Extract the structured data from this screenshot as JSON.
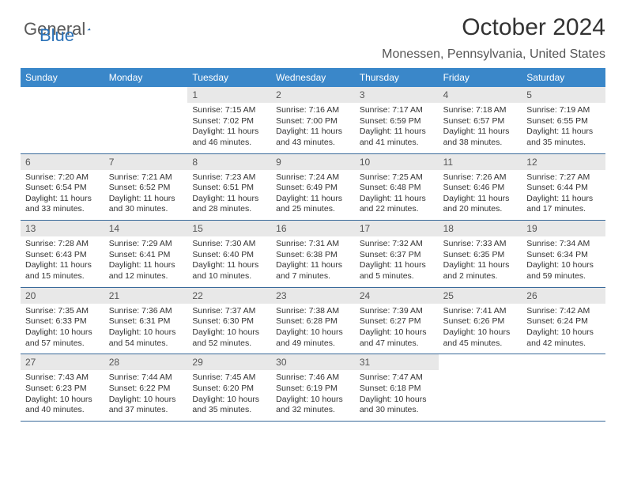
{
  "logo": {
    "word1": "General",
    "word2": "Blue"
  },
  "title": "October 2024",
  "location": "Monessen, Pennsylvania, United States",
  "colors": {
    "header_bg": "#3a87c9",
    "header_text": "#ffffff",
    "daynum_bg": "#e8e8e8",
    "week_border": "#3a6a9a",
    "text": "#333333"
  },
  "day_names": [
    "Sunday",
    "Monday",
    "Tuesday",
    "Wednesday",
    "Thursday",
    "Friday",
    "Saturday"
  ],
  "weeks": [
    [
      {
        "n": "",
        "sr": "",
        "ss": "",
        "dl": ""
      },
      {
        "n": "",
        "sr": "",
        "ss": "",
        "dl": ""
      },
      {
        "n": "1",
        "sr": "Sunrise: 7:15 AM",
        "ss": "Sunset: 7:02 PM",
        "dl": "Daylight: 11 hours and 46 minutes."
      },
      {
        "n": "2",
        "sr": "Sunrise: 7:16 AM",
        "ss": "Sunset: 7:00 PM",
        "dl": "Daylight: 11 hours and 43 minutes."
      },
      {
        "n": "3",
        "sr": "Sunrise: 7:17 AM",
        "ss": "Sunset: 6:59 PM",
        "dl": "Daylight: 11 hours and 41 minutes."
      },
      {
        "n": "4",
        "sr": "Sunrise: 7:18 AM",
        "ss": "Sunset: 6:57 PM",
        "dl": "Daylight: 11 hours and 38 minutes."
      },
      {
        "n": "5",
        "sr": "Sunrise: 7:19 AM",
        "ss": "Sunset: 6:55 PM",
        "dl": "Daylight: 11 hours and 35 minutes."
      }
    ],
    [
      {
        "n": "6",
        "sr": "Sunrise: 7:20 AM",
        "ss": "Sunset: 6:54 PM",
        "dl": "Daylight: 11 hours and 33 minutes."
      },
      {
        "n": "7",
        "sr": "Sunrise: 7:21 AM",
        "ss": "Sunset: 6:52 PM",
        "dl": "Daylight: 11 hours and 30 minutes."
      },
      {
        "n": "8",
        "sr": "Sunrise: 7:23 AM",
        "ss": "Sunset: 6:51 PM",
        "dl": "Daylight: 11 hours and 28 minutes."
      },
      {
        "n": "9",
        "sr": "Sunrise: 7:24 AM",
        "ss": "Sunset: 6:49 PM",
        "dl": "Daylight: 11 hours and 25 minutes."
      },
      {
        "n": "10",
        "sr": "Sunrise: 7:25 AM",
        "ss": "Sunset: 6:48 PM",
        "dl": "Daylight: 11 hours and 22 minutes."
      },
      {
        "n": "11",
        "sr": "Sunrise: 7:26 AM",
        "ss": "Sunset: 6:46 PM",
        "dl": "Daylight: 11 hours and 20 minutes."
      },
      {
        "n": "12",
        "sr": "Sunrise: 7:27 AM",
        "ss": "Sunset: 6:44 PM",
        "dl": "Daylight: 11 hours and 17 minutes."
      }
    ],
    [
      {
        "n": "13",
        "sr": "Sunrise: 7:28 AM",
        "ss": "Sunset: 6:43 PM",
        "dl": "Daylight: 11 hours and 15 minutes."
      },
      {
        "n": "14",
        "sr": "Sunrise: 7:29 AM",
        "ss": "Sunset: 6:41 PM",
        "dl": "Daylight: 11 hours and 12 minutes."
      },
      {
        "n": "15",
        "sr": "Sunrise: 7:30 AM",
        "ss": "Sunset: 6:40 PM",
        "dl": "Daylight: 11 hours and 10 minutes."
      },
      {
        "n": "16",
        "sr": "Sunrise: 7:31 AM",
        "ss": "Sunset: 6:38 PM",
        "dl": "Daylight: 11 hours and 7 minutes."
      },
      {
        "n": "17",
        "sr": "Sunrise: 7:32 AM",
        "ss": "Sunset: 6:37 PM",
        "dl": "Daylight: 11 hours and 5 minutes."
      },
      {
        "n": "18",
        "sr": "Sunrise: 7:33 AM",
        "ss": "Sunset: 6:35 PM",
        "dl": "Daylight: 11 hours and 2 minutes."
      },
      {
        "n": "19",
        "sr": "Sunrise: 7:34 AM",
        "ss": "Sunset: 6:34 PM",
        "dl": "Daylight: 10 hours and 59 minutes."
      }
    ],
    [
      {
        "n": "20",
        "sr": "Sunrise: 7:35 AM",
        "ss": "Sunset: 6:33 PM",
        "dl": "Daylight: 10 hours and 57 minutes."
      },
      {
        "n": "21",
        "sr": "Sunrise: 7:36 AM",
        "ss": "Sunset: 6:31 PM",
        "dl": "Daylight: 10 hours and 54 minutes."
      },
      {
        "n": "22",
        "sr": "Sunrise: 7:37 AM",
        "ss": "Sunset: 6:30 PM",
        "dl": "Daylight: 10 hours and 52 minutes."
      },
      {
        "n": "23",
        "sr": "Sunrise: 7:38 AM",
        "ss": "Sunset: 6:28 PM",
        "dl": "Daylight: 10 hours and 49 minutes."
      },
      {
        "n": "24",
        "sr": "Sunrise: 7:39 AM",
        "ss": "Sunset: 6:27 PM",
        "dl": "Daylight: 10 hours and 47 minutes."
      },
      {
        "n": "25",
        "sr": "Sunrise: 7:41 AM",
        "ss": "Sunset: 6:26 PM",
        "dl": "Daylight: 10 hours and 45 minutes."
      },
      {
        "n": "26",
        "sr": "Sunrise: 7:42 AM",
        "ss": "Sunset: 6:24 PM",
        "dl": "Daylight: 10 hours and 42 minutes."
      }
    ],
    [
      {
        "n": "27",
        "sr": "Sunrise: 7:43 AM",
        "ss": "Sunset: 6:23 PM",
        "dl": "Daylight: 10 hours and 40 minutes."
      },
      {
        "n": "28",
        "sr": "Sunrise: 7:44 AM",
        "ss": "Sunset: 6:22 PM",
        "dl": "Daylight: 10 hours and 37 minutes."
      },
      {
        "n": "29",
        "sr": "Sunrise: 7:45 AM",
        "ss": "Sunset: 6:20 PM",
        "dl": "Daylight: 10 hours and 35 minutes."
      },
      {
        "n": "30",
        "sr": "Sunrise: 7:46 AM",
        "ss": "Sunset: 6:19 PM",
        "dl": "Daylight: 10 hours and 32 minutes."
      },
      {
        "n": "31",
        "sr": "Sunrise: 7:47 AM",
        "ss": "Sunset: 6:18 PM",
        "dl": "Daylight: 10 hours and 30 minutes."
      },
      {
        "n": "",
        "sr": "",
        "ss": "",
        "dl": ""
      },
      {
        "n": "",
        "sr": "",
        "ss": "",
        "dl": ""
      }
    ]
  ]
}
